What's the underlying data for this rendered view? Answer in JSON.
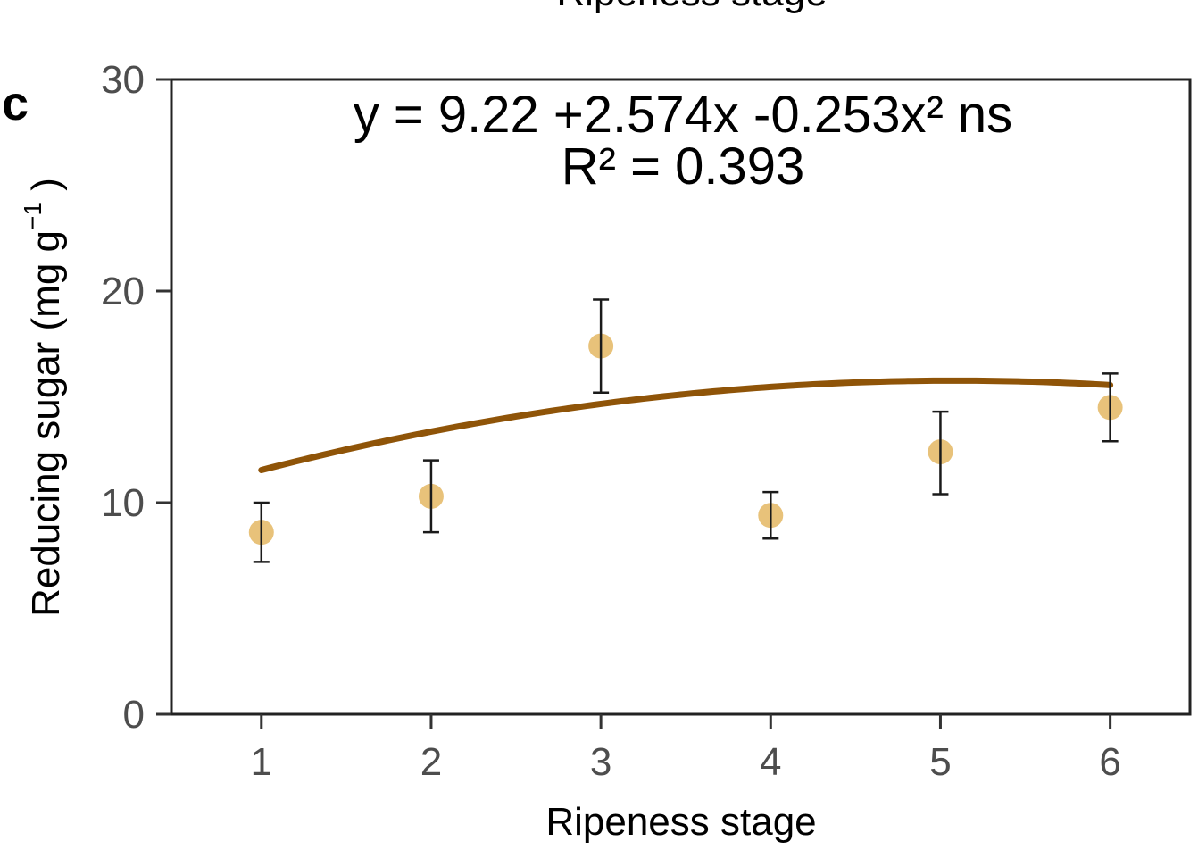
{
  "top_cut_title": "Ripeness stage",
  "chart_data": {
    "type": "scatter",
    "panel_label": "c",
    "xlabel": "Ripeness stage",
    "ylabel_main": "Reducing sugar (mg g",
    "ylabel_sup": "−1",
    "ylabel_close": " )",
    "xlim": [
      0.47,
      6.47
    ],
    "ylim": [
      0,
      30
    ],
    "x_ticks": [
      1,
      2,
      3,
      4,
      5,
      6
    ],
    "y_ticks": [
      0,
      10,
      20,
      30
    ],
    "grid": false,
    "series": [
      {
        "x": [
          1,
          2,
          3,
          4,
          5,
          6
        ],
        "y": [
          8.6,
          10.3,
          17.4,
          9.4,
          12.4,
          14.5
        ],
        "error_low": [
          7.2,
          8.6,
          15.2,
          8.3,
          10.4,
          12.9
        ],
        "error_high": [
          10.0,
          12.0,
          19.6,
          10.5,
          14.3,
          16.1
        ],
        "color": "#e8c27a"
      }
    ],
    "fit": {
      "intercept": 9.22,
      "b1": 2.574,
      "b2": -0.253,
      "x_range": [
        1,
        6
      ],
      "color": "#8f5408"
    },
    "annotations": {
      "equation": "y = 9.22 +2.574x -0.253x² ns",
      "r2": "R² = 0.393"
    }
  }
}
